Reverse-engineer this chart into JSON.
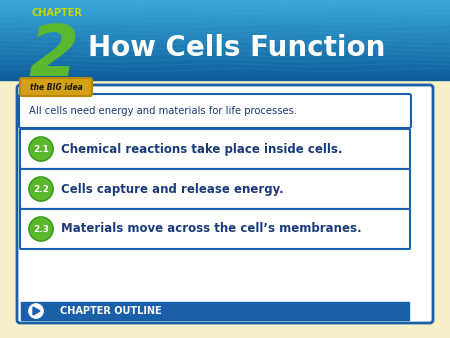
{
  "chapter_label": "CHAPTER",
  "chapter_num": "2",
  "title": "How Cells Function",
  "bg_body_color": "#f5f0c8",
  "big_idea_label": "the BIG idea",
  "big_idea_text": "All cells need energy and materials for life processes.",
  "sections": [
    {
      "num": "2.1",
      "text": "Chemical reactions take place inside cells."
    },
    {
      "num": "2.2",
      "text": "Cells capture and release energy."
    },
    {
      "num": "2.3",
      "text": "Materials move across the cell’s membranes."
    }
  ],
  "outline_label": "CHAPTER OUTLINE",
  "section_bg": "#ffffff",
  "section_border": "#1a5fa8",
  "section_num_bg": "#5ab82e",
  "section_num_color": "#ffffff",
  "section_text_color": "#1a3a7a",
  "outline_bg": "#1a5fa8",
  "outline_text_color": "#ffffff",
  "big_idea_border": "#1a5fa8",
  "big_idea_label_bg": "#d4a017",
  "header_text_color": "#ffffff",
  "chapter_label_color": "#c8d800",
  "chapter_num_color": "#5ab82e",
  "header_grad_top": "#0d5c99",
  "header_grad_bot": "#3aa8d8"
}
